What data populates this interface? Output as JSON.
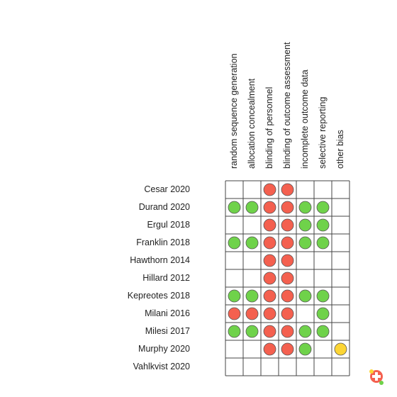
{
  "columns": [
    "random sequence generation",
    "allocation concealment",
    "blinding of personnel",
    "blinding of outcome assessment",
    "incomplete outcome data",
    "selective reporting",
    "other bias"
  ],
  "rows": [
    {
      "label": "Cesar 2020",
      "cells": [
        null,
        null,
        "#f4604f",
        "#f4604f",
        null,
        null,
        null
      ]
    },
    {
      "label": "Durand 2020",
      "cells": [
        "#6fd24a",
        "#6fd24a",
        "#f4604f",
        "#f4604f",
        "#6fd24a",
        "#6fd24a",
        null
      ]
    },
    {
      "label": "Ergul 2018",
      "cells": [
        null,
        null,
        "#f4604f",
        "#f4604f",
        "#6fd24a",
        "#6fd24a",
        null
      ]
    },
    {
      "label": "Franklin 2018",
      "cells": [
        "#6fd24a",
        "#6fd24a",
        "#f4604f",
        "#f4604f",
        "#6fd24a",
        "#6fd24a",
        null
      ]
    },
    {
      "label": "Hawthorn 2014",
      "cells": [
        null,
        null,
        "#f4604f",
        "#f4604f",
        null,
        null,
        null
      ]
    },
    {
      "label": "Hillard 2012",
      "cells": [
        null,
        null,
        "#f4604f",
        "#f4604f",
        null,
        null,
        null
      ]
    },
    {
      "label": "Kepreotes 2018",
      "cells": [
        "#6fd24a",
        "#6fd24a",
        "#f4604f",
        "#f4604f",
        "#6fd24a",
        "#6fd24a",
        null
      ]
    },
    {
      "label": "Milani 2016",
      "cells": [
        "#f4604f",
        "#f4604f",
        "#f4604f",
        "#f4604f",
        null,
        "#6fd24a",
        null
      ]
    },
    {
      "label": "Milesi 2017",
      "cells": [
        "#6fd24a",
        "#6fd24a",
        "#f4604f",
        "#f4604f",
        "#6fd24a",
        "#6fd24a",
        null
      ]
    },
    {
      "label": "Murphy 2020",
      "cells": [
        null,
        null,
        "#f4604f",
        "#f4604f",
        "#6fd24a",
        null,
        "#fcd535"
      ]
    },
    {
      "label": "Vahlkvist 2020",
      "cells": [
        null,
        null,
        null,
        null,
        null,
        null,
        null
      ]
    }
  ]
}
